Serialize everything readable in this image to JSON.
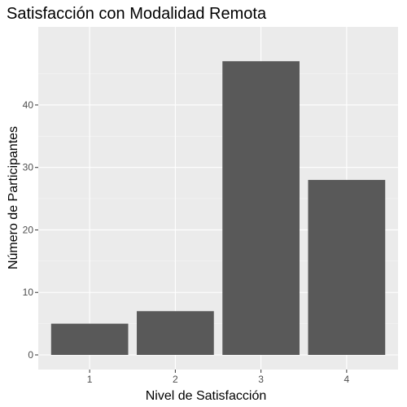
{
  "chart_data": {
    "type": "bar",
    "title": "Satisfacción con Modalidad Remota",
    "xlabel": "Nivel de Satisfacción",
    "ylabel": "Número de Participantes",
    "categories": [
      "1",
      "2",
      "3",
      "4"
    ],
    "values": [
      5,
      7,
      47,
      28
    ],
    "ylim": [
      0,
      50
    ],
    "yticks": [
      0,
      10,
      20,
      30,
      40
    ],
    "grid": true,
    "colors": {
      "panel": "#ebebeb",
      "bar": "#595959",
      "grid_major": "#ffffff"
    }
  }
}
